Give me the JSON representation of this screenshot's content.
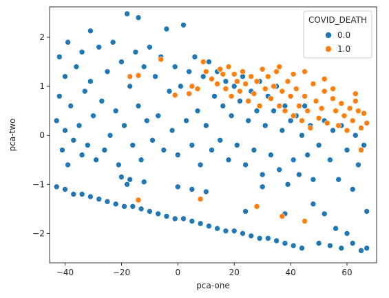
{
  "chart_data": {
    "type": "scatter",
    "title": "",
    "xlabel": "pca-one",
    "ylabel": "pca-two",
    "xlim": [
      -45.5,
      70.5
    ],
    "ylim": [
      -2.6,
      2.62
    ],
    "xticks": [
      -40,
      -20,
      0,
      20,
      40,
      60
    ],
    "yticks": [
      -2,
      -1,
      0,
      1,
      2
    ],
    "grid": false,
    "legend": {
      "title": "COVID_DEATH",
      "placement": "top-right",
      "entries": [
        {
          "label": "0.0",
          "color": "#1f77b4"
        },
        {
          "label": "1.0",
          "color": "#ff7f0e"
        }
      ]
    },
    "series": [
      {
        "name": "0.0",
        "color": "#1f77b4",
        "description": "dense main cloud plus lower diagonal band",
        "points": [
          [
            -43,
            0.3
          ],
          [
            -42,
            0.8
          ],
          [
            -42,
            1.6
          ],
          [
            -41,
            -0.3
          ],
          [
            -40,
            1.2
          ],
          [
            -40,
            0.1
          ],
          [
            -39,
            -0.6
          ],
          [
            -39,
            1.9
          ],
          [
            -38,
            0.6
          ],
          [
            -37,
            -0.1
          ],
          [
            -36,
            1.4
          ],
          [
            -35,
            0.2
          ],
          [
            -34,
            -0.4
          ],
          [
            -34,
            1.7
          ],
          [
            -33,
            0.9
          ],
          [
            -32,
            -0.2
          ],
          [
            -31,
            2.13
          ],
          [
            -31,
            1.1
          ],
          [
            -30,
            0.4
          ],
          [
            -29,
            -0.5
          ],
          [
            -28,
            1.8
          ],
          [
            -27,
            0.7
          ],
          [
            -26,
            -0.3
          ],
          [
            -25,
            1.3
          ],
          [
            -24,
            0.0
          ],
          [
            -23,
            1.9
          ],
          [
            -22,
            0.5
          ],
          [
            -21,
            -0.6
          ],
          [
            -20,
            1.5
          ],
          [
            -19,
            0.2
          ],
          [
            -18,
            2.48
          ],
          [
            -17,
            1.0
          ],
          [
            -16,
            -0.2
          ],
          [
            -15,
            1.7
          ],
          [
            -14,
            2.4
          ],
          [
            -14,
            0.6
          ],
          [
            -13,
            -0.5
          ],
          [
            -12,
            1.4
          ],
          [
            -11,
            0.3
          ],
          [
            -10,
            1.8
          ],
          [
            -9,
            -0.1
          ],
          [
            -8,
            1.2
          ],
          [
            -7,
            0.4
          ],
          [
            -6,
            1.6
          ],
          [
            -5,
            -0.3
          ],
          [
            -4,
            2.17
          ],
          [
            -3,
            0.9
          ],
          [
            -2,
            0.1
          ],
          [
            -1,
            1.4
          ],
          [
            0,
            -0.4
          ],
          [
            1,
            1.0
          ],
          [
            2,
            2.25
          ],
          [
            3,
            0.3
          ],
          [
            4,
            1.3
          ],
          [
            5,
            -0.2
          ],
          [
            6,
            1.6
          ],
          [
            7,
            0.5
          ],
          [
            8,
            -0.6
          ],
          [
            9,
            1.2
          ],
          [
            10,
            0.2
          ],
          [
            11,
            1.5
          ],
          [
            12,
            -0.3
          ],
          [
            13,
            0.8
          ],
          [
            14,
            1.3
          ],
          [
            15,
            -0.1
          ],
          [
            16,
            0.6
          ],
          [
            17,
            1.1
          ],
          [
            18,
            -0.5
          ],
          [
            19,
            0.4
          ],
          [
            20,
            1.0
          ],
          [
            21,
            -0.2
          ],
          [
            22,
            0.7
          ],
          [
            23,
            1.2
          ],
          [
            24,
            -0.6
          ],
          [
            25,
            0.3
          ],
          [
            26,
            0.9
          ],
          [
            27,
            -0.3
          ],
          [
            28,
            0.5
          ],
          [
            29,
            1.1
          ],
          [
            30,
            -0.8
          ],
          [
            31,
            0.2
          ],
          [
            32,
            0.8
          ],
          [
            33,
            -0.4
          ],
          [
            34,
            0.5
          ],
          [
            35,
            1.0
          ],
          [
            36,
            -0.7
          ],
          [
            37,
            0.1
          ],
          [
            38,
            0.6
          ],
          [
            39,
            -1.0
          ],
          [
            40,
            0.3
          ],
          [
            41,
            -0.5
          ],
          [
            42,
            0.4
          ],
          [
            43,
            -0.8
          ],
          [
            44,
            0.0
          ],
          [
            45,
            0.6
          ],
          [
            46,
            -0.4
          ],
          [
            47,
            0.2
          ],
          [
            48,
            -0.9
          ],
          [
            50,
            -0.2
          ],
          [
            52,
            0.3
          ],
          [
            54,
            -0.5
          ],
          [
            55,
            0.1
          ],
          [
            57,
            -0.9
          ],
          [
            58,
            0.2
          ],
          [
            60,
            -0.3
          ],
          [
            62,
            -1.1
          ],
          [
            63,
            0.0
          ],
          [
            64,
            -0.6
          ],
          [
            66,
            -0.2
          ],
          [
            67,
            -1.55
          ],
          [
            -43,
            -1.05
          ],
          [
            -40,
            -1.1
          ],
          [
            -37,
            -1.2
          ],
          [
            -34,
            -1.2
          ],
          [
            -31,
            -1.25
          ],
          [
            -28,
            -1.3
          ],
          [
            -25,
            -1.35
          ],
          [
            -22,
            -1.4
          ],
          [
            -19,
            -1.45
          ],
          [
            -16,
            -1.45
          ],
          [
            -13,
            -1.5
          ],
          [
            -10,
            -1.55
          ],
          [
            -7,
            -1.6
          ],
          [
            -4,
            -1.65
          ],
          [
            -1,
            -1.7
          ],
          [
            2,
            -1.7
          ],
          [
            5,
            -1.75
          ],
          [
            8,
            -1.8
          ],
          [
            11,
            -1.85
          ],
          [
            14,
            -1.9
          ],
          [
            17,
            -1.95
          ],
          [
            20,
            -1.95
          ],
          [
            23,
            -2.0
          ],
          [
            26,
            -2.05
          ],
          [
            29,
            -2.1
          ],
          [
            32,
            -2.1
          ],
          [
            35,
            -2.15
          ],
          [
            38,
            -2.2
          ],
          [
            41,
            -2.25
          ],
          [
            44,
            -2.3
          ],
          [
            -20,
            -0.85
          ],
          [
            -17,
            -0.9
          ],
          [
            -12,
            -0.95
          ],
          [
            0,
            -1.05
          ],
          [
            10,
            -1.15
          ],
          [
            -18,
            -1.0
          ],
          [
            5,
            -1.1
          ],
          [
            30,
            -1.05
          ],
          [
            24,
            -1.55
          ],
          [
            38,
            -1.6
          ],
          [
            48,
            -1.4
          ],
          [
            52,
            -1.6
          ],
          [
            56,
            -1.9
          ],
          [
            60,
            -2.0
          ],
          [
            62,
            -2.2
          ],
          [
            65,
            -2.35
          ],
          [
            67,
            -2.3
          ],
          [
            58,
            -2.3
          ],
          [
            54,
            -2.25
          ],
          [
            50,
            -2.2
          ]
        ]
      },
      {
        "name": "1.0",
        "color": "#ff7f0e",
        "description": "cluster concentrated in upper-right",
        "points": [
          [
            -17,
            1.2
          ],
          [
            -14,
            1.22
          ],
          [
            -6,
            1.55
          ],
          [
            -1,
            0.82
          ],
          [
            4,
            0.85
          ],
          [
            5,
            1.0
          ],
          [
            7,
            0.95
          ],
          [
            9,
            1.5
          ],
          [
            10,
            1.3
          ],
          [
            12,
            1.15
          ],
          [
            14,
            1.05
          ],
          [
            15,
            1.35
          ],
          [
            16,
            1.25
          ],
          [
            17,
            0.95
          ],
          [
            18,
            1.4
          ],
          [
            19,
            0.8
          ],
          [
            20,
            1.25
          ],
          [
            21,
            1.1
          ],
          [
            22,
            0.9
          ],
          [
            23,
            1.3
          ],
          [
            24,
            1.05
          ],
          [
            25,
            0.7
          ],
          [
            26,
            1.2
          ],
          [
            27,
            0.85
          ],
          [
            28,
            1.1
          ],
          [
            29,
            0.6
          ],
          [
            30,
            1.35
          ],
          [
            31,
            0.95
          ],
          [
            32,
            1.2
          ],
          [
            33,
            0.75
          ],
          [
            34,
            1.0
          ],
          [
            35,
            1.3
          ],
          [
            36,
            0.6
          ],
          [
            37,
            0.9
          ],
          [
            38,
            0.5
          ],
          [
            39,
            1.1
          ],
          [
            40,
            0.8
          ],
          [
            41,
            0.4
          ],
          [
            42,
            0.95
          ],
          [
            43,
            0.6
          ],
          [
            44,
            0.3
          ],
          [
            45,
            0.8
          ],
          [
            46,
            0.5
          ],
          [
            47,
            0.15
          ],
          [
            48,
            1.05
          ],
          [
            49,
            0.7
          ],
          [
            50,
            0.35
          ],
          [
            51,
            0.55
          ],
          [
            52,
            0.9
          ],
          [
            53,
            0.25
          ],
          [
            55,
            0.75
          ],
          [
            56,
            0.5
          ],
          [
            57,
            0.2
          ],
          [
            58,
            0.65
          ],
          [
            59,
            0.4
          ],
          [
            60,
            0.1
          ],
          [
            61,
            0.55
          ],
          [
            62,
            0.3
          ],
          [
            63,
            0.7
          ],
          [
            64,
            0.5
          ],
          [
            65,
            0.15
          ],
          [
            66,
            0.45
          ],
          [
            67,
            0.25
          ],
          [
            45,
            1.3
          ],
          [
            52,
            1.15
          ],
          [
            36,
            1.4
          ],
          [
            41,
            1.25
          ],
          [
            55,
            0.95
          ],
          [
            63,
            0.85
          ],
          [
            28,
            -1.45
          ],
          [
            37,
            -1.65
          ],
          [
            45,
            -1.75
          ],
          [
            8,
            -1.3
          ],
          [
            -14,
            -1.32
          ],
          [
            65,
            -0.3
          ]
        ]
      }
    ]
  }
}
